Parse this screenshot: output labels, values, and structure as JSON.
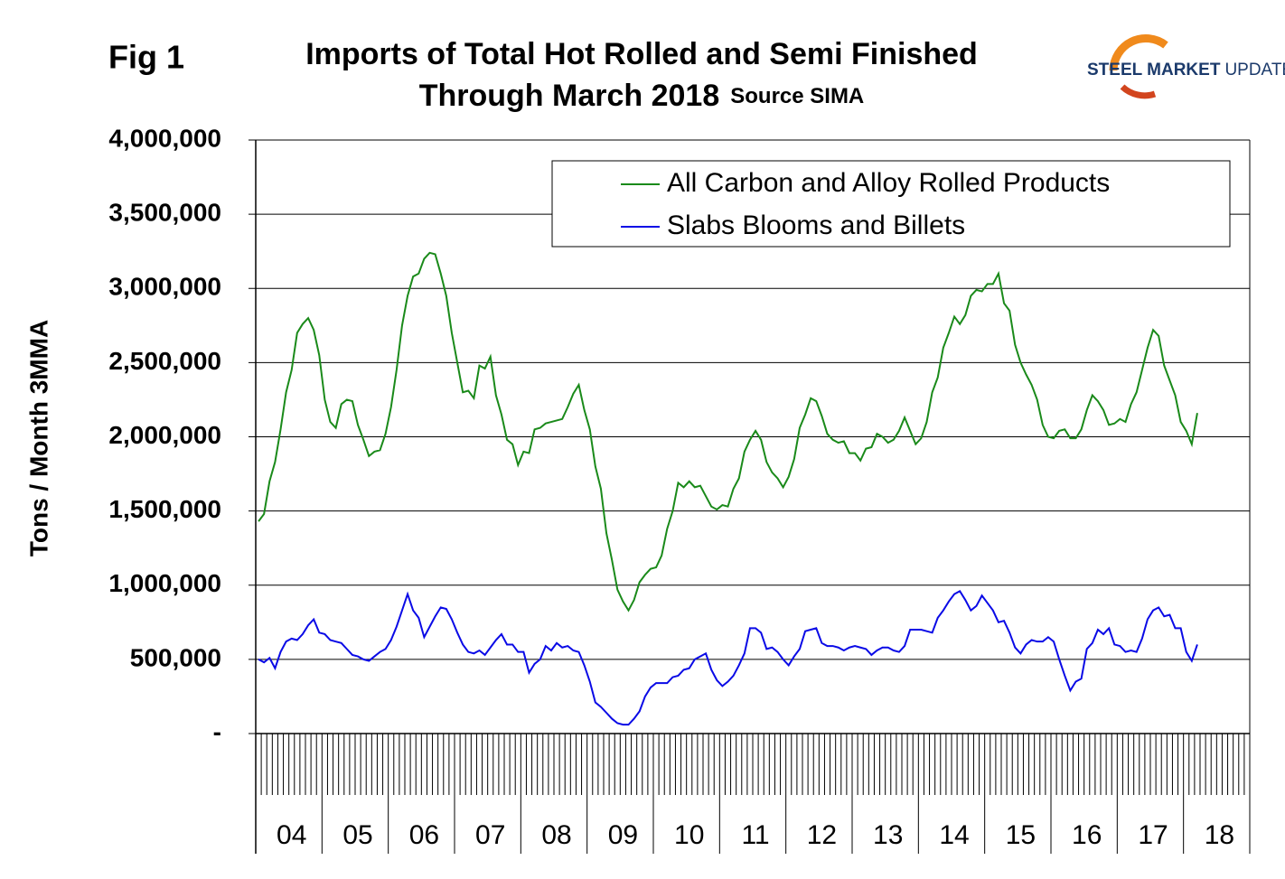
{
  "figure_label": "Fig 1",
  "logo": {
    "bold": "STEEL MARKET",
    "light": "UPDATE"
  },
  "chart_data": {
    "type": "line",
    "title": "Imports of Total Hot Rolled and Semi Finished",
    "subtitle": "Through March 2018",
    "source": "Source SIMA",
    "y_label": "Tons / Month 3MMA",
    "legend": "upper right",
    "grid": true,
    "ylim": [
      0,
      4000000
    ],
    "yticks": [
      {
        "value": 0,
        "label": "-"
      },
      {
        "value": 500000,
        "label": "500,000"
      },
      {
        "value": 1000000,
        "label": "1,000,000"
      },
      {
        "value": 1500000,
        "label": "1,500,000"
      },
      {
        "value": 2000000,
        "label": "2,000,000"
      },
      {
        "value": 2500000,
        "label": "2,500,000"
      },
      {
        "value": 3000000,
        "label": "3,000,000"
      },
      {
        "value": 3500000,
        "label": "3,500,000"
      },
      {
        "value": 4000000,
        "label": "4,000,000"
      }
    ],
    "categories": [
      null,
      null,
      null,
      null,
      null,
      null,
      "04",
      null,
      null,
      null,
      null,
      null,
      null,
      null,
      null,
      null,
      null,
      null,
      "05",
      null,
      null,
      null,
      null,
      null,
      null,
      null,
      null,
      null,
      null,
      null,
      "06",
      null,
      null,
      null,
      null,
      null,
      null,
      null,
      null,
      null,
      null,
      null,
      "07",
      null,
      null,
      null,
      null,
      null,
      null,
      null,
      null,
      null,
      null,
      null,
      "08",
      null,
      null,
      null,
      null,
      null,
      null,
      null,
      null,
      null,
      null,
      null,
      "09",
      null,
      null,
      null,
      null,
      null,
      null,
      null,
      null,
      null,
      null,
      null,
      "10",
      null,
      null,
      null,
      null,
      null,
      null,
      null,
      null,
      null,
      null,
      null,
      "11",
      null,
      null,
      null,
      null,
      null,
      null,
      null,
      null,
      null,
      null,
      null,
      "12",
      null,
      null,
      null,
      null,
      null,
      null,
      null,
      null,
      null,
      null,
      null,
      "13",
      null,
      null,
      null,
      null,
      null,
      null,
      null,
      null,
      null,
      null,
      null,
      "14",
      null,
      null,
      null,
      null,
      null,
      null,
      null,
      null,
      null,
      null,
      null,
      "15",
      null,
      null,
      null,
      null,
      null,
      null,
      null,
      null,
      null,
      null,
      null,
      "16",
      null,
      null,
      null,
      null,
      null,
      null,
      null,
      null,
      null,
      null,
      null,
      "17",
      null,
      null,
      null,
      null,
      null,
      null,
      null,
      null,
      null,
      null,
      null,
      "18",
      null,
      null,
      null,
      null,
      null
    ],
    "series": [
      {
        "name": "All Carbon and Alloy Rolled Products",
        "color": "#1a8a1a",
        "values": [
          1430000,
          1480000,
          1700000,
          1830000,
          2050000,
          2300000,
          2450000,
          2700000,
          2760000,
          2800000,
          2720000,
          2550000,
          2250000,
          2100000,
          2060000,
          2220000,
          2250000,
          2240000,
          2080000,
          1980000,
          1870000,
          1900000,
          1910000,
          2020000,
          2200000,
          2450000,
          2750000,
          2950000,
          3080000,
          3100000,
          3200000,
          3240000,
          3230000,
          3100000,
          2950000,
          2700000,
          2500000,
          2300000,
          2310000,
          2260000,
          2480000,
          2460000,
          2540000,
          2280000,
          2150000,
          1980000,
          1950000,
          1810000,
          1900000,
          1890000,
          2050000,
          2060000,
          2090000,
          2100000,
          2110000,
          2120000,
          2200000,
          2290000,
          2350000,
          2180000,
          2050000,
          1800000,
          1650000,
          1350000,
          1170000,
          970000,
          890000,
          830000,
          900000,
          1020000,
          1070000,
          1110000,
          1120000,
          1200000,
          1380000,
          1500000,
          1690000,
          1660000,
          1700000,
          1660000,
          1670000,
          1600000,
          1530000,
          1510000,
          1540000,
          1530000,
          1650000,
          1720000,
          1900000,
          1980000,
          2040000,
          1980000,
          1830000,
          1760000,
          1720000,
          1660000,
          1730000,
          1850000,
          2060000,
          2150000,
          2260000,
          2240000,
          2140000,
          2020000,
          1980000,
          1960000,
          1970000,
          1890000,
          1890000,
          1840000,
          1920000,
          1930000,
          2020000,
          2000000,
          1960000,
          1980000,
          2040000,
          2130000,
          2040000,
          1950000,
          1990000,
          2100000,
          2300000,
          2400000,
          2600000,
          2700000,
          2810000,
          2760000,
          2820000,
          2950000,
          2990000,
          2980000,
          3030000,
          3030000,
          3100000,
          2900000,
          2850000,
          2620000,
          2500000,
          2420000,
          2350000,
          2250000,
          2080000,
          2000000,
          1990000,
          2040000,
          2050000,
          1990000,
          1990000,
          2050000,
          2180000,
          2280000,
          2240000,
          2180000,
          2080000,
          2090000,
          2120000,
          2100000,
          2220000,
          2300000,
          2450000,
          2600000,
          2720000,
          2680000,
          2480000,
          2380000,
          2280000,
          2100000,
          2040000,
          1950000,
          2160000,
          null,
          null,
          null,
          null,
          null,
          null,
          null,
          null,
          null
        ]
      },
      {
        "name": "Slabs Blooms and Billets",
        "color": "#0a0ae6",
        "values": [
          500000,
          480000,
          510000,
          440000,
          550000,
          620000,
          640000,
          630000,
          670000,
          730000,
          770000,
          680000,
          670000,
          630000,
          620000,
          610000,
          570000,
          530000,
          520000,
          500000,
          490000,
          520000,
          550000,
          570000,
          630000,
          720000,
          830000,
          940000,
          830000,
          780000,
          650000,
          720000,
          790000,
          850000,
          840000,
          770000,
          680000,
          600000,
          550000,
          540000,
          560000,
          530000,
          580000,
          630000,
          670000,
          600000,
          600000,
          550000,
          550000,
          410000,
          470000,
          500000,
          590000,
          560000,
          610000,
          580000,
          590000,
          560000,
          550000,
          460000,
          350000,
          210000,
          180000,
          140000,
          100000,
          70000,
          60000,
          60000,
          100000,
          150000,
          250000,
          310000,
          340000,
          340000,
          340000,
          380000,
          390000,
          430000,
          440000,
          500000,
          520000,
          540000,
          430000,
          360000,
          320000,
          350000,
          390000,
          460000,
          540000,
          710000,
          710000,
          680000,
          570000,
          580000,
          550000,
          500000,
          460000,
          520000,
          570000,
          690000,
          700000,
          710000,
          610000,
          590000,
          590000,
          580000,
          560000,
          580000,
          590000,
          580000,
          570000,
          530000,
          560000,
          580000,
          580000,
          560000,
          550000,
          590000,
          700000,
          700000,
          700000,
          690000,
          680000,
          780000,
          830000,
          890000,
          940000,
          960000,
          900000,
          830000,
          860000,
          930000,
          880000,
          830000,
          750000,
          760000,
          680000,
          580000,
          540000,
          600000,
          630000,
          620000,
          620000,
          650000,
          620000,
          500000,
          390000,
          290000,
          350000,
          370000,
          570000,
          610000,
          700000,
          670000,
          710000,
          600000,
          590000,
          550000,
          560000,
          550000,
          640000,
          770000,
          830000,
          850000,
          790000,
          800000,
          710000,
          710000,
          550000,
          490000,
          600000,
          null,
          null,
          null,
          null,
          null,
          null,
          null,
          null,
          null
        ]
      }
    ]
  }
}
